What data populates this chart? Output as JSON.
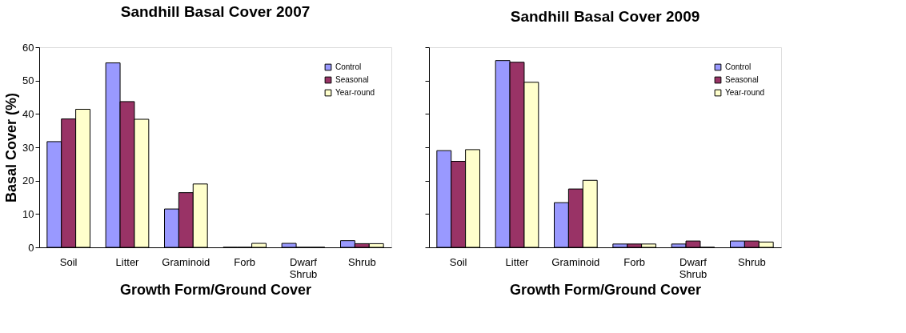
{
  "chart_data": [
    {
      "type": "bar",
      "title": "Sandhill Basal Cover 2007",
      "xlabel": "Growth Form/Ground Cover",
      "ylabel": "Basal Cover (%)",
      "categories": [
        "Soil",
        "Litter",
        "Graminoid",
        "Forb",
        "Dwarf Shrub",
        "Shrub"
      ],
      "series": [
        {
          "name": "Control",
          "color": "#9999ff",
          "values": [
            31.7,
            55.3,
            11.5,
            0,
            1.2,
            2.0
          ]
        },
        {
          "name": "Seasonal",
          "color": "#993366",
          "values": [
            38.5,
            43.7,
            16.4,
            0,
            0,
            1.1
          ]
        },
        {
          "name": "Year-round",
          "color": "#ffffcc",
          "values": [
            41.4,
            38.4,
            19.0,
            1.2,
            0,
            1.1
          ]
        }
      ],
      "ylim": [
        0,
        60
      ],
      "yticks": [
        0,
        10,
        20,
        30,
        40,
        50,
        60
      ],
      "grid": false,
      "legend": "top right"
    },
    {
      "type": "bar",
      "title": "Sandhill Basal Cover 2009",
      "xlabel": "Growth Form/Ground Cover",
      "categories": [
        "Soil",
        "Litter",
        "Graminoid",
        "Forb",
        "Dwarf Shrub",
        "Shrub"
      ],
      "series": [
        {
          "name": "Control",
          "color": "#9999ff",
          "values": [
            29.0,
            56.0,
            13.4,
            1.0,
            1.0,
            1.9
          ]
        },
        {
          "name": "Seasonal",
          "color": "#993366",
          "values": [
            25.8,
            55.5,
            17.5,
            1.0,
            1.9,
            1.9
          ]
        },
        {
          "name": "Year-round",
          "color": "#ffffcc",
          "values": [
            29.3,
            49.5,
            20.1,
            1.0,
            0,
            1.6
          ]
        }
      ],
      "ylim": [
        0,
        60
      ],
      "yticks": [
        0,
        10,
        20,
        30,
        40,
        50,
        60
      ],
      "grid": false,
      "legend": "top right",
      "tick_labels": "x"
    }
  ]
}
